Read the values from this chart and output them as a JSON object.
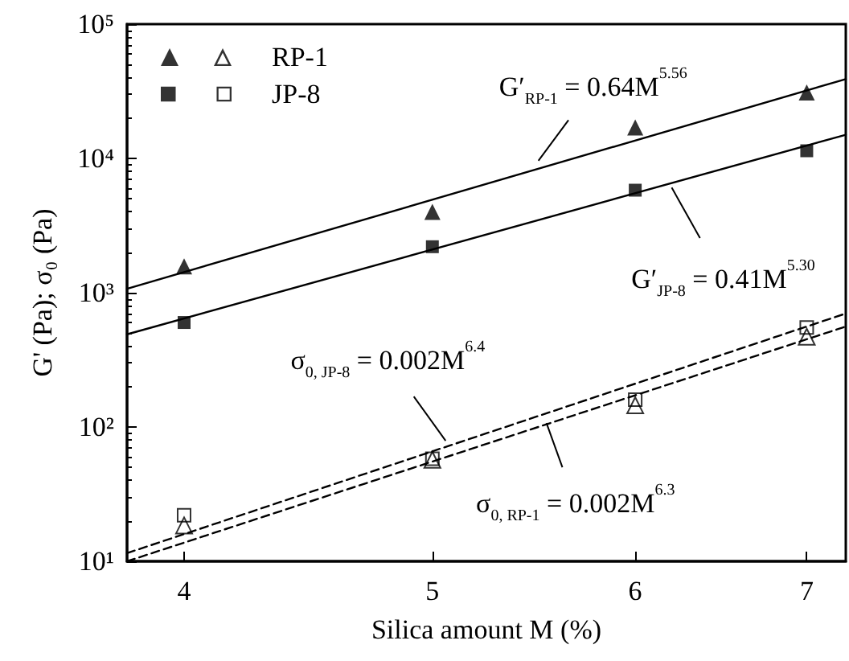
{
  "chart_data": {
    "type": "scatter",
    "xlabel": "Silica amount M (%)",
    "ylabel": "G' (Pa); σ₀ (Pa)",
    "log": "xy",
    "xlim": [
      3.8,
      7.25
    ],
    "xticks": [
      4,
      5,
      6,
      7
    ],
    "ylim": [
      10,
      100000
    ],
    "yticks": [
      {
        "value": 10,
        "label": "10¹"
      },
      {
        "value": 100,
        "label": "10²"
      },
      {
        "value": 1000,
        "label": "10³"
      },
      {
        "value": 10000,
        "label": "10⁴"
      },
      {
        "value": 100000,
        "label": "10⁵"
      }
    ],
    "grid": false,
    "legend": "top left",
    "series": [
      {
        "name": "RP-1",
        "marker": "triangle",
        "color": "#000000",
        "x": [
          4,
          5,
          6,
          7
        ],
        "values": [
          1570,
          4000,
          17000,
          31000
        ]
      },
      {
        "name": "JP-8",
        "marker": "square",
        "color": "#000000",
        "x": [
          4,
          5,
          6,
          7
        ],
        "values": [
          600,
          2200,
          5800,
          11400
        ]
      },
      {
        "marker": "triangle",
        "color": "#000000",
        "x": [
          4,
          5,
          6,
          7
        ],
        "values": [
          18.5,
          57,
          145,
          470
        ]
      },
      {
        "marker": "square",
        "color": "#000000",
        "x": [
          4,
          5,
          6,
          7
        ],
        "values": [
          22,
          58,
          160,
          550
        ]
      },
      {
        "type": "line",
        "line_style": "solid",
        "color": "#000000",
        "x": [
          3.8,
          7.25
        ],
        "values": [
          1070,
          39000
        ]
      },
      {
        "type": "line",
        "line_style": "solid",
        "color": "#000000",
        "x": [
          3.8,
          7.25
        ],
        "values": [
          490,
          15000
        ]
      },
      {
        "type": "line",
        "line_style": "dashed",
        "color": "#000000",
        "x": [
          3.8,
          7.25
        ],
        "values": [
          11.5,
          700
        ]
      },
      {
        "type": "line",
        "line_style": "dashed",
        "color": "#000000",
        "x": [
          3.8,
          7.25
        ],
        "values": [
          10,
          560
        ]
      }
    ],
    "annotations": [
      {
        "text": "G′$_{RP-1}$ = 0.64M$^{5.56}$",
        "x": 5.5,
        "y": 9600
      },
      {
        "text": "G′$_{JP-8}$ = 0.41M$^{5.30}$",
        "x": 6.2,
        "y": 6060
      },
      {
        "text": "σ$_{0, JP-8}$ = 0.002M$^{6.4}$",
        "x": 5.06,
        "y": 79
      },
      {
        "text": "σ$_{0, RP-1}$ = 0.002M$^{6.3}$",
        "x": 5.54,
        "y": 107
      }
    ]
  }
}
